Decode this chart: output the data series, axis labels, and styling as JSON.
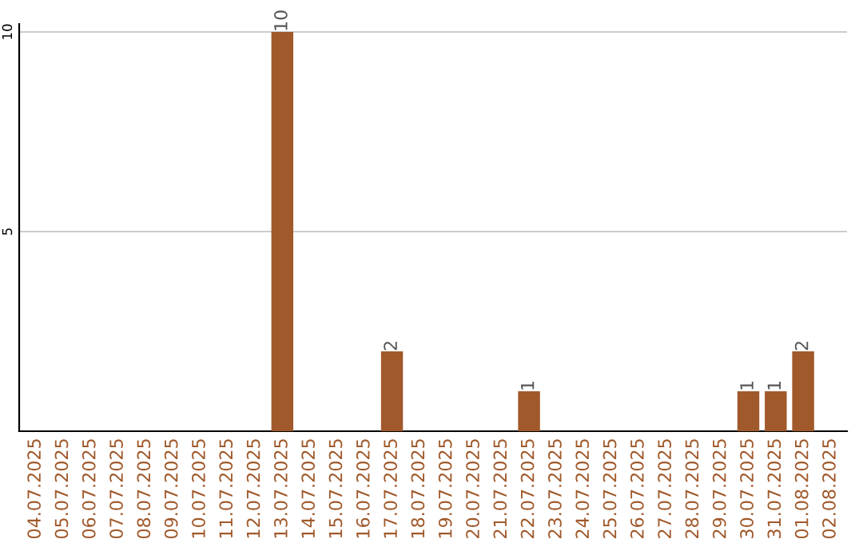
{
  "chart_data": {
    "type": "bar",
    "categories": [
      "04.07.2025",
      "05.07.2025",
      "06.07.2025",
      "07.07.2025",
      "08.07.2025",
      "09.07.2025",
      "10.07.2025",
      "11.07.2025",
      "12.07.2025",
      "13.07.2025",
      "14.07.2025",
      "15.07.2025",
      "16.07.2025",
      "17.07.2025",
      "18.07.2025",
      "19.07.2025",
      "20.07.2025",
      "21.07.2025",
      "22.07.2025",
      "23.07.2025",
      "24.07.2025",
      "25.07.2025",
      "26.07.2025",
      "27.07.2025",
      "28.07.2025",
      "29.07.2025",
      "30.07.2025",
      "31.07.2025",
      "01.08.2025",
      "02.08.2025"
    ],
    "values": [
      0,
      0,
      0,
      0,
      0,
      0,
      0,
      0,
      0,
      10,
      0,
      0,
      0,
      2,
      0,
      0,
      0,
      0,
      1,
      0,
      0,
      0,
      0,
      0,
      0,
      0,
      1,
      1,
      2,
      0
    ],
    "value_labels": [
      null,
      null,
      null,
      null,
      null,
      null,
      null,
      null,
      null,
      "10",
      null,
      null,
      null,
      "2",
      null,
      null,
      null,
      null,
      "1",
      null,
      null,
      null,
      null,
      null,
      null,
      null,
      "1",
      "1",
      "2",
      null
    ],
    "color": "#a0592b",
    "ylim": [
      0,
      10.2
    ],
    "yticks": [
      5,
      10
    ],
    "grid": "y"
  }
}
